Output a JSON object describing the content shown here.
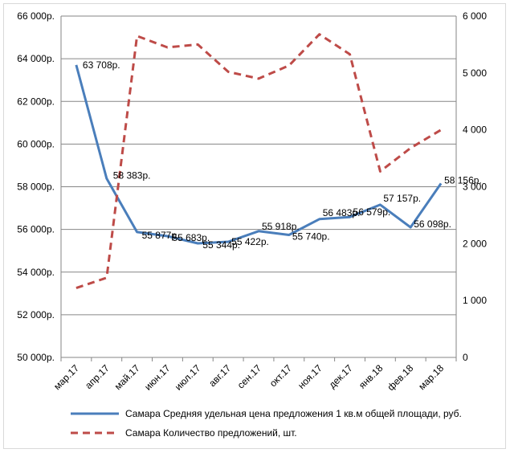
{
  "chart_data": {
    "type": "line",
    "categories": [
      "мар.17",
      "апр.17",
      "май.17",
      "июн.17",
      "июл.17",
      "авг.17",
      "сен.17",
      "окт.17",
      "ноя.17",
      "дек.17",
      "янв.18",
      "фев.18",
      "мар.18"
    ],
    "left_axis": {
      "ylim": [
        50000,
        66000
      ],
      "ticks": [
        50000,
        52000,
        54000,
        56000,
        58000,
        60000,
        62000,
        64000,
        66000
      ],
      "tick_labels": [
        "50 000р.",
        "52 000р.",
        "54 000р.",
        "56 000р.",
        "58 000р.",
        "60 000р.",
        "62 000р.",
        "64 000р.",
        "66 000р."
      ]
    },
    "right_axis": {
      "ylim": [
        0,
        6000
      ],
      "ticks": [
        0,
        1000,
        2000,
        3000,
        4000,
        5000,
        6000
      ],
      "tick_labels": [
        "0",
        "1 000",
        "2 000",
        "3 000",
        "4 000",
        "5 000",
        "6 000"
      ]
    },
    "grid": true,
    "legend_position": "bottom",
    "series": [
      {
        "name": "Самара Средняя удельная цена предложения 1 кв.м общей площади, руб.",
        "axis": "left",
        "color": "#4a7ebb",
        "style": "solid",
        "values": [
          63708,
          58383,
          55877,
          55683,
          55344,
          55422,
          55918,
          55740,
          56483,
          56579,
          57157,
          56098,
          58156
        ],
        "labels": [
          "63 708р.",
          "58 383р.",
          "55 877р.",
          "55 683р.",
          "55 344р.",
          "55 422р.",
          "55 918р.",
          "55 740р.",
          "56 483р.",
          "56 579р.",
          "57 157р.",
          "56 098р.",
          "58 156р."
        ]
      },
      {
        "name": "Самара Количество предложений, шт.",
        "axis": "right",
        "color": "#be4b48",
        "style": "dashed",
        "values": [
          1220,
          1400,
          5650,
          5450,
          5500,
          5020,
          4900,
          5130,
          5680,
          5330,
          3270,
          3680,
          4000
        ]
      }
    ]
  }
}
